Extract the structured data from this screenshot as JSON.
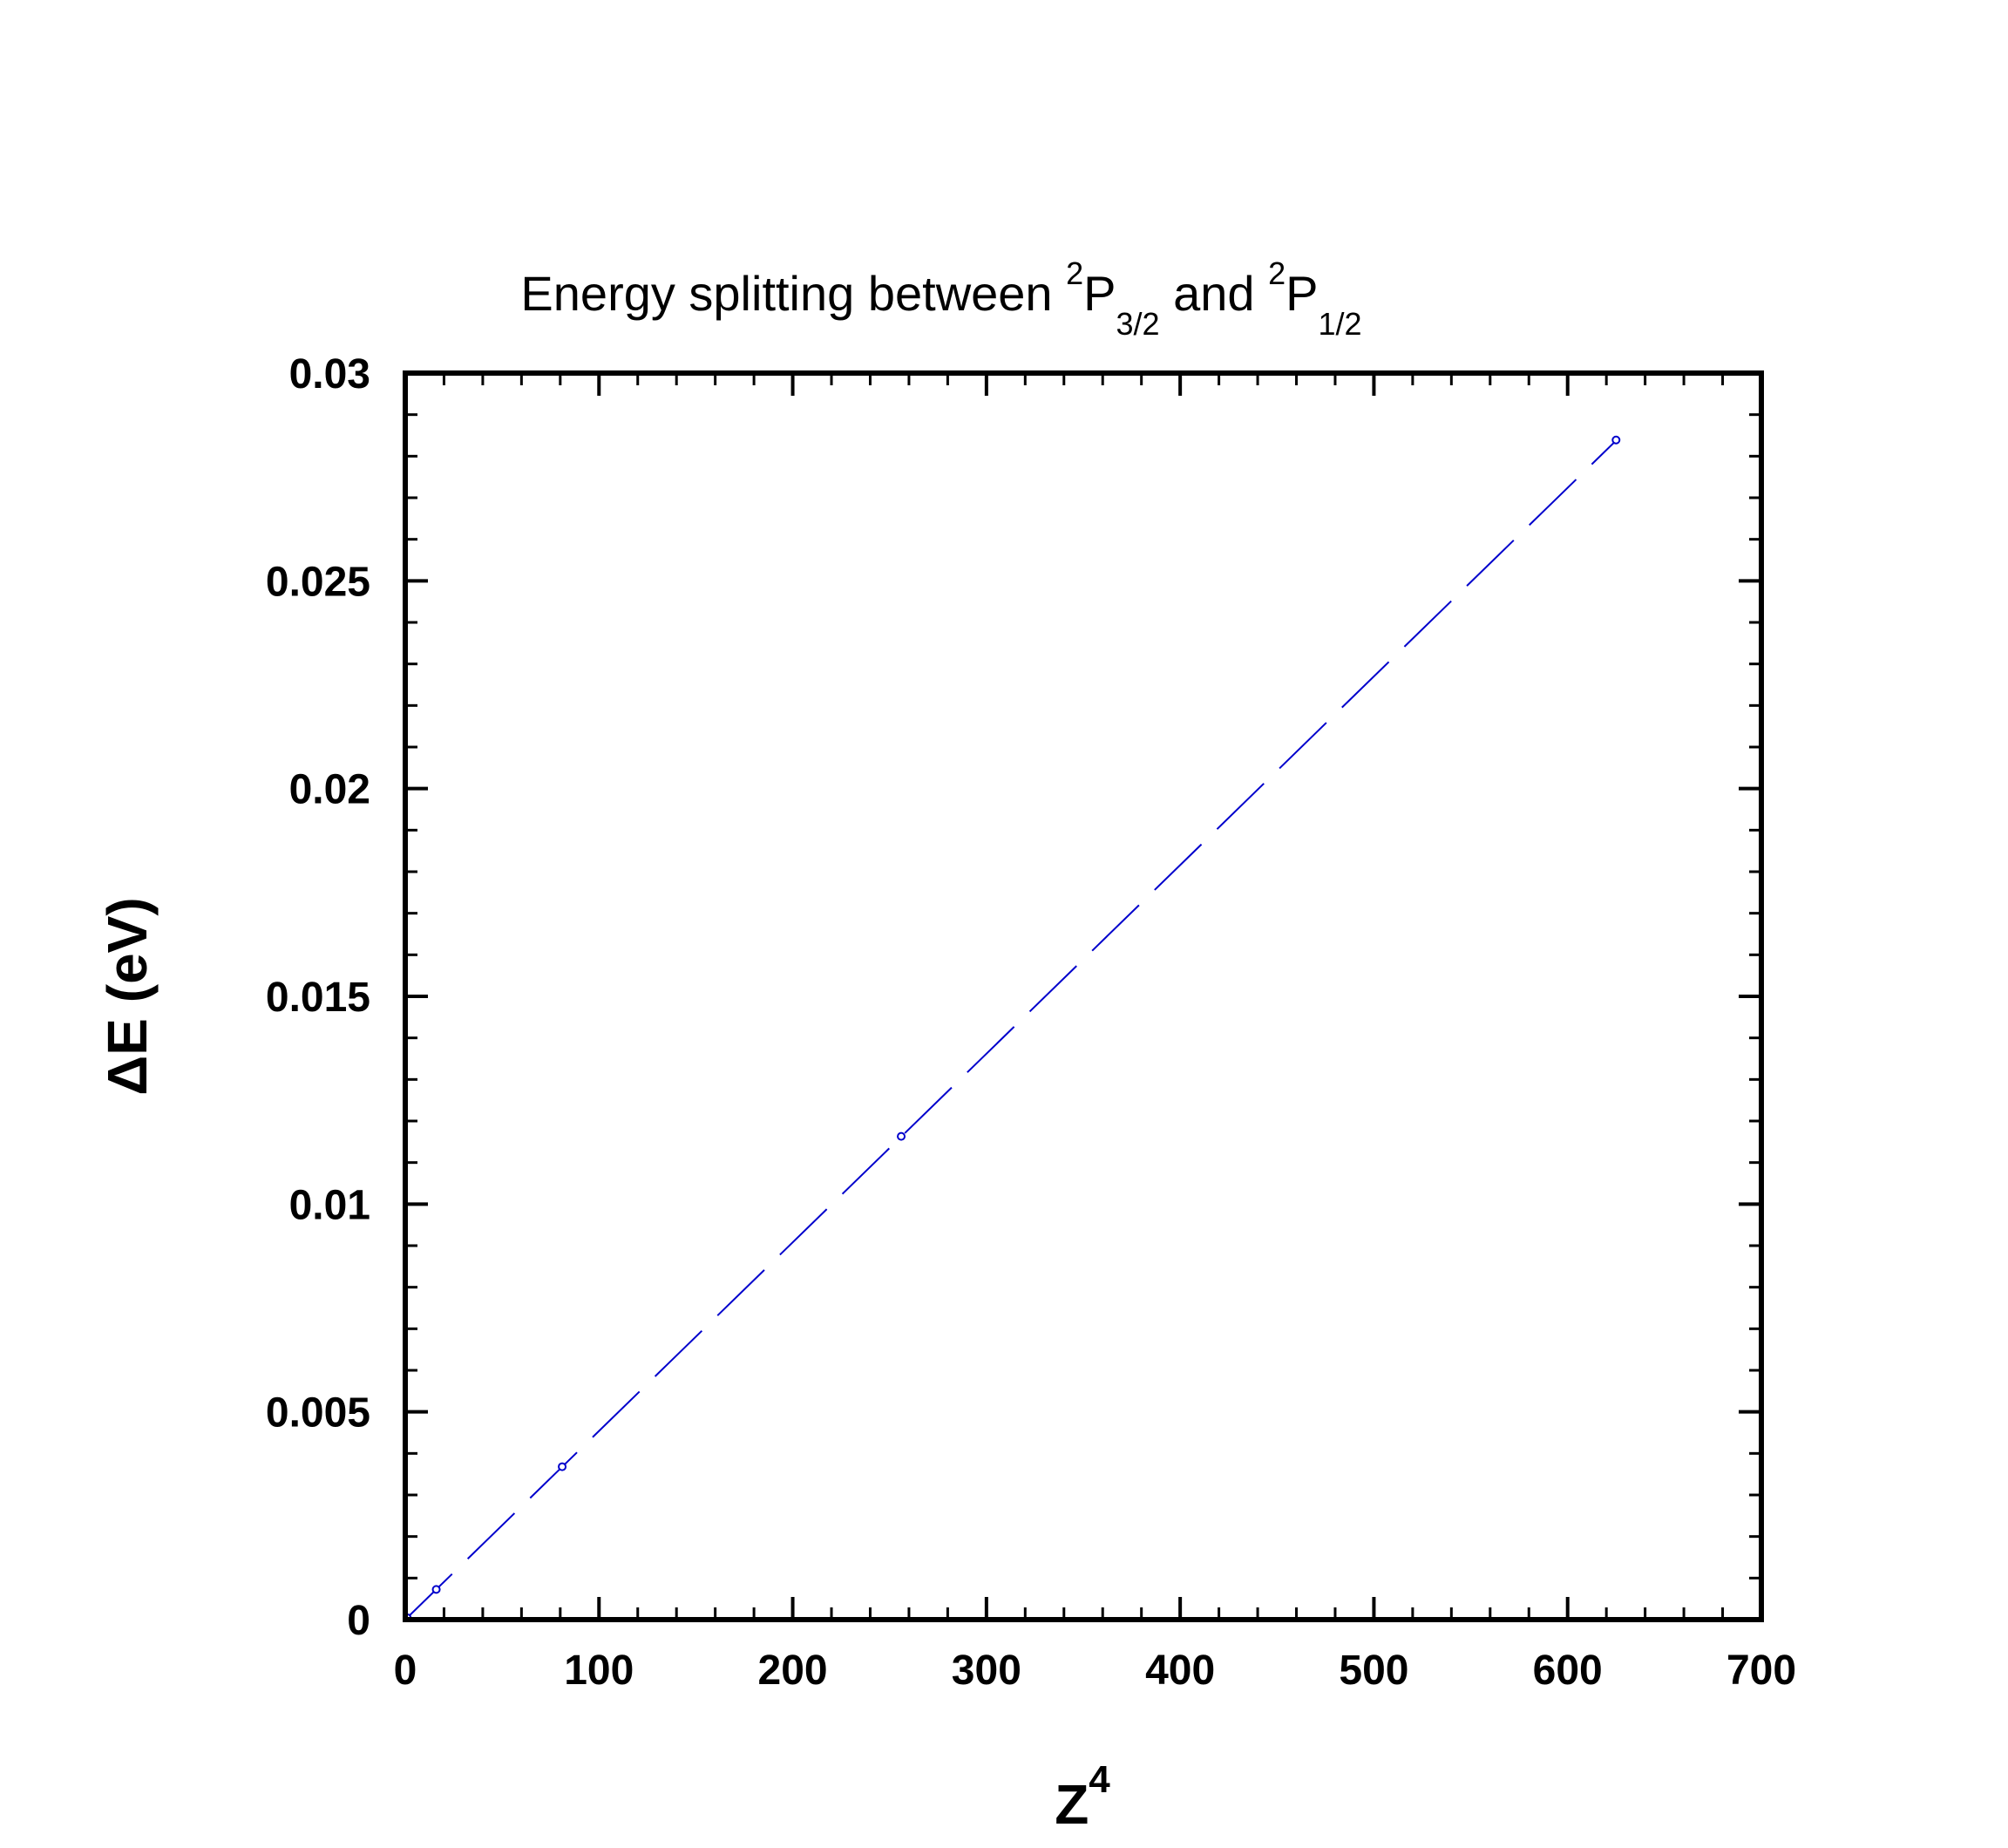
{
  "chart_data": {
    "type": "scatter",
    "title": {
      "prefix": "Energy splitting between ",
      "sup_a": "2",
      "base_a": "P",
      "sub_a": "3/2",
      "middle": " and ",
      "sup_b": "2",
      "base_b": "P",
      "sub_b": "1/2"
    },
    "xlabel": {
      "base": "Z",
      "sup": "4"
    },
    "ylabel": "ΔE (eV)",
    "xlim": [
      0,
      700
    ],
    "ylim": [
      0,
      0.03
    ],
    "xticks": [
      0,
      100,
      200,
      300,
      400,
      500,
      600,
      700
    ],
    "yticks": [
      0,
      0.005,
      0.01,
      0.015,
      0.02,
      0.025,
      0.03
    ],
    "xtick_labels": [
      "0",
      "100",
      "200",
      "300",
      "400",
      "500",
      "600",
      "700"
    ],
    "ytick_labels": [
      "0",
      "0.005",
      "0.01",
      "0.015",
      "0.02",
      "0.025",
      "0.03"
    ],
    "x_minor_step": 20,
    "y_minor_step": 0.001,
    "grid": false,
    "series": [
      {
        "points": [
          {
            "x": 1,
            "y": 4.54e-05
          },
          {
            "x": 16,
            "y": 0.000726
          },
          {
            "x": 81,
            "y": 0.00368
          },
          {
            "x": 256,
            "y": 0.01163
          },
          {
            "x": 625,
            "y": 0.02839
          }
        ],
        "fit": {
          "slope": 4.54e-05,
          "intercept": 0,
          "style": "dashed"
        },
        "color": "#0000cc"
      }
    ]
  }
}
